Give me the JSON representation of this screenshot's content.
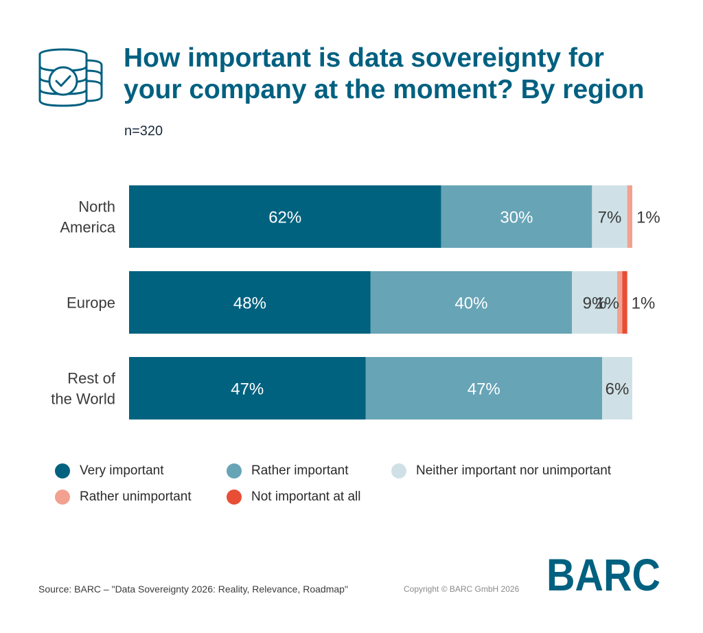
{
  "header": {
    "title_line1": "How important is data sovereignty for",
    "title_line2": "your company at the moment? By region",
    "sample": "n=320"
  },
  "colors": {
    "very_important": "#00627f",
    "rather_important": "#67a4b6",
    "neither": "#cfe1e6",
    "rather_unimportant": "#f2a190",
    "not_important": "#e84e36",
    "title": "#006080"
  },
  "chart_data": {
    "type": "bar",
    "orientation": "horizontal",
    "stacked": true,
    "categories": [
      "North America",
      "Europe",
      "Rest of the World"
    ],
    "category_lines": [
      [
        "North",
        "America"
      ],
      [
        "Europe"
      ],
      [
        "Rest of",
        "the World"
      ]
    ],
    "series": [
      {
        "name": "Very important",
        "color": "#00627f",
        "values": [
          62,
          48,
          47
        ]
      },
      {
        "name": "Rather important",
        "color": "#67a4b6",
        "values": [
          30,
          40,
          47
        ]
      },
      {
        "name": "Neither important nor unimportant",
        "color": "#cfe1e6",
        "values": [
          7,
          9,
          6
        ]
      },
      {
        "name": "Rather unimportant",
        "color": "#f2a190",
        "values": [
          1,
          1,
          0
        ]
      },
      {
        "name": "Not important at all",
        "color": "#e84e36",
        "values": [
          0,
          1,
          0
        ]
      }
    ],
    "data_labels": [
      [
        "62%",
        "30%",
        "7%",
        "1%",
        null
      ],
      [
        "48%",
        "40%",
        "9%",
        "1%",
        "1%"
      ],
      [
        "47%",
        "47%",
        "6%",
        null,
        null
      ]
    ],
    "xlim": [
      0,
      100
    ],
    "legend_position": "bottom"
  },
  "footer": {
    "source": "Source: BARC – \"Data Sovereignty 2026: Reality, Relevance, Roadmap\"",
    "copyright": "Copyright © BARC GmbH 2026",
    "logo_text": "BARC"
  }
}
